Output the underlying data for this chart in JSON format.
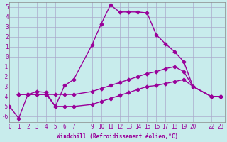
{
  "title": "",
  "xlabel": "Windchill (Refroidissement éolien,°C)",
  "ylabel": "",
  "background_color": "#c8ecec",
  "grid_color": "#aaaacc",
  "line_color": "#990099",
  "xticks": [
    0,
    1,
    2,
    3,
    4,
    5,
    6,
    7,
    9,
    10,
    11,
    12,
    13,
    14,
    15,
    16,
    17,
    18,
    19,
    20,
    22,
    23
  ],
  "yticks": [
    -6,
    -5,
    -4,
    -3,
    -2,
    -1,
    0,
    1,
    2,
    3,
    4,
    5
  ],
  "xlim": [
    0,
    23.5
  ],
  "ylim": [
    -6.6,
    5.5
  ],
  "lines": [
    {
      "x": [
        0,
        1,
        2,
        3,
        4,
        5,
        6,
        7,
        9,
        10,
        11,
        12,
        13,
        14,
        15,
        16,
        17,
        18,
        19,
        20,
        22,
        23
      ],
      "y": [
        -5.0,
        -6.2,
        -3.8,
        -3.5,
        -3.6,
        -5.0,
        -2.9,
        -2.3,
        1.2,
        3.3,
        5.2,
        4.5,
        4.5,
        4.5,
        4.4,
        2.2,
        1.3,
        0.5,
        -0.5,
        -3.0,
        -4.0,
        -4.0
      ],
      "marker": "D",
      "markersize": 2.5,
      "linewidth": 1.0
    },
    {
      "x": [
        1,
        2,
        3,
        4,
        5,
        6,
        7,
        9,
        10,
        11,
        12,
        13,
        14,
        15,
        16,
        17,
        18,
        19,
        20,
        22,
        23
      ],
      "y": [
        -3.8,
        -3.8,
        -3.8,
        -3.8,
        -3.8,
        -3.8,
        -3.8,
        -3.5,
        -3.2,
        -2.9,
        -2.6,
        -2.3,
        -2.0,
        -1.7,
        -1.5,
        -1.2,
        -1.0,
        -1.5,
        -3.0,
        -4.0,
        -4.0
      ],
      "marker": "D",
      "markersize": 2.5,
      "linewidth": 1.0
    },
    {
      "x": [
        1,
        2,
        3,
        4,
        5,
        6,
        7,
        9,
        10,
        11,
        12,
        13,
        14,
        15,
        16,
        17,
        18,
        19,
        20,
        22,
        23
      ],
      "y": [
        -3.8,
        -3.8,
        -3.8,
        -3.8,
        -5.0,
        -5.0,
        -5.0,
        -4.8,
        -4.5,
        -4.2,
        -3.9,
        -3.6,
        -3.3,
        -3.0,
        -2.9,
        -2.7,
        -2.5,
        -2.3,
        -3.0,
        -4.0,
        -4.0
      ],
      "marker": "D",
      "markersize": 2.5,
      "linewidth": 1.0
    }
  ],
  "tick_fontsize": 5.5,
  "xlabel_fontsize": 5.5,
  "figure_width": 3.2,
  "figure_height": 2.0,
  "dpi": 100
}
